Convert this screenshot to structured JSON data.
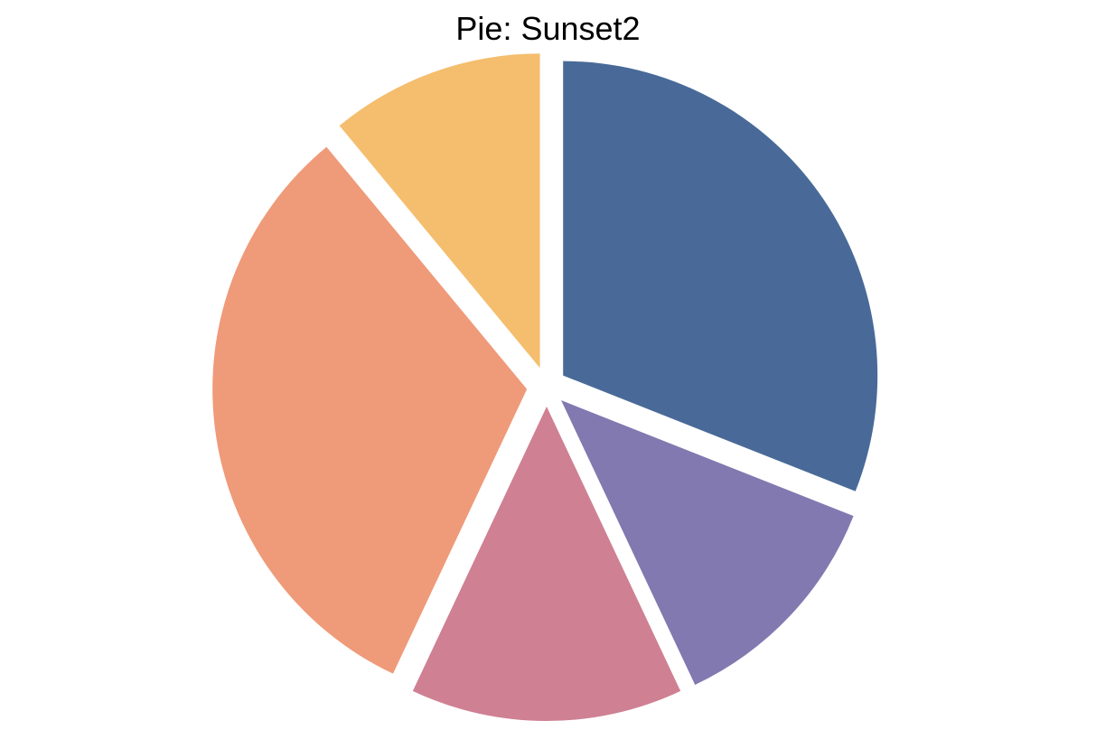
{
  "chart_data": {
    "type": "pie",
    "title": "Pie: Sunset2",
    "start_angle_deg": 90,
    "direction": "clockwise",
    "exploded": true,
    "slices": [
      {
        "value": 31,
        "color": "#496a98"
      },
      {
        "value": 12,
        "color": "#8179b0"
      },
      {
        "value": 14,
        "color": "#cf8093"
      },
      {
        "value": 32,
        "color": "#ef9a79"
      },
      {
        "value": 11,
        "color": "#f4be6e"
      }
    ]
  }
}
